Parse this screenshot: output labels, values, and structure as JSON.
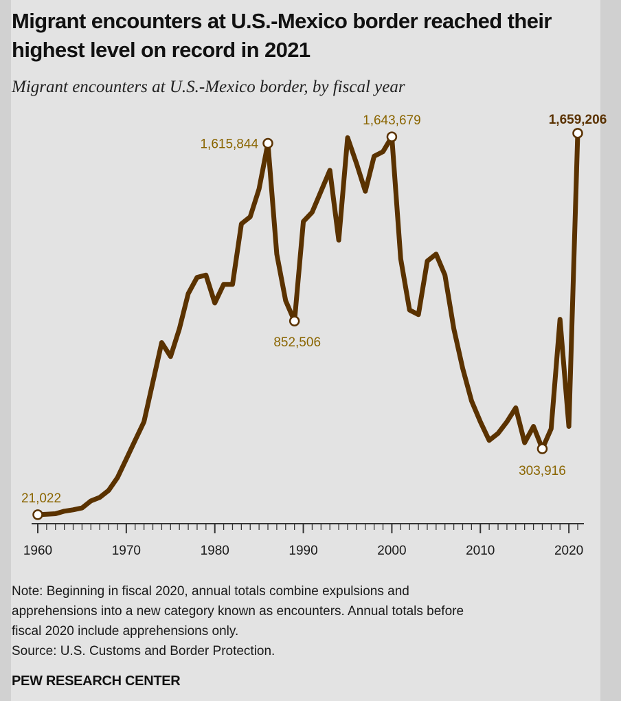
{
  "header": {
    "title": "Migrant encounters at U.S.-Mexico border reached their highest level on record in 2021",
    "subtitle": "Migrant encounters at U.S.-Mexico border, by fiscal year"
  },
  "chart_data": {
    "type": "line",
    "title": "Migrant encounters at U.S.-Mexico border, by fiscal year",
    "xlabel": "",
    "ylabel": "",
    "xlim": [
      1960,
      2021
    ],
    "ylim": [
      0,
      1700000
    ],
    "x_ticks": [
      "1960",
      "1970",
      "1980",
      "1990",
      "2000",
      "2010",
      "2020"
    ],
    "series": [
      {
        "name": "Encounters",
        "color": "#5a3200",
        "x": [
          1960,
          1961,
          1962,
          1963,
          1964,
          1965,
          1966,
          1967,
          1968,
          1969,
          1970,
          1971,
          1972,
          1973,
          1974,
          1975,
          1976,
          1977,
          1978,
          1979,
          1980,
          1981,
          1982,
          1983,
          1984,
          1985,
          1986,
          1987,
          1988,
          1989,
          1990,
          1991,
          1992,
          1993,
          1994,
          1995,
          1996,
          1997,
          1998,
          1999,
          2000,
          2001,
          2002,
          2003,
          2004,
          2005,
          2006,
          2007,
          2008,
          2009,
          2010,
          2011,
          2012,
          2013,
          2014,
          2015,
          2016,
          2017,
          2018,
          2019,
          2020,
          2021
        ],
        "values": [
          21022,
          23000,
          25000,
          36000,
          42000,
          50000,
          80000,
          95000,
          125000,
          180000,
          260000,
          340000,
          420000,
          590000,
          760000,
          700000,
          820000,
          970000,
          1040000,
          1050000,
          930000,
          1010000,
          1010000,
          1270000,
          1300000,
          1420000,
          1615844,
          1140000,
          940000,
          852506,
          1280000,
          1320000,
          1410000,
          1500000,
          1200000,
          1640000,
          1530000,
          1410000,
          1560000,
          1580000,
          1643679,
          1120000,
          900000,
          880000,
          1110000,
          1140000,
          1050000,
          820000,
          650000,
          510000,
          420000,
          340000,
          370000,
          420000,
          480000,
          330000,
          400000,
          303916,
          390000,
          860000,
          400000,
          1659206
        ]
      }
    ],
    "annotations": [
      {
        "label": "21,022",
        "x": 1960,
        "value": 21022
      },
      {
        "label": "1,615,844",
        "x": 1986,
        "value": 1615844
      },
      {
        "label": "852,506",
        "x": 1989,
        "value": 852506
      },
      {
        "label": "1,643,679",
        "x": 2000,
        "value": 1643679
      },
      {
        "label": "303,916",
        "x": 2017,
        "value": 303916
      },
      {
        "label": "1,659,206",
        "x": 2021,
        "value": 1659206,
        "bold": true
      }
    ],
    "colors": {
      "line": "#5a3200",
      "label": "#8a6500",
      "label_bold": "#5a3200",
      "axis": "#333333"
    }
  },
  "footer": {
    "note_lines": [
      "Note: Beginning in fiscal 2020, annual totals combine expulsions and",
      "apprehensions into a new category known as encounters. Annual totals before",
      "fiscal 2020 include apprehensions only."
    ],
    "source": "Source: U.S. Customs and Border Protection.",
    "brand": "PEW RESEARCH CENTER"
  }
}
